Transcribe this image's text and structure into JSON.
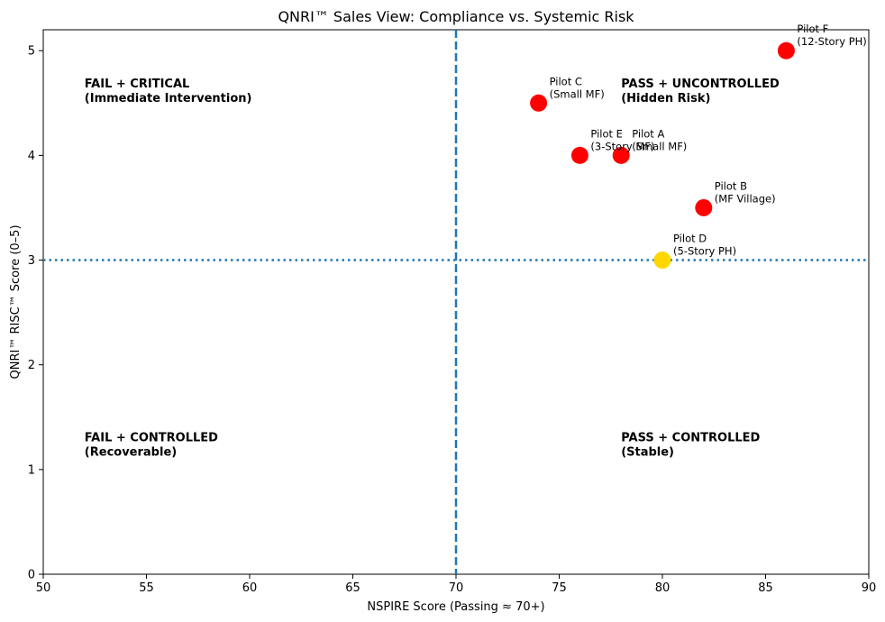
{
  "chart_data": {
    "type": "scatter",
    "title": "QNRI™ Sales View: Compliance vs. Systemic Risk",
    "xlabel": "NSPIRE Score (Passing ≈ 70+)",
    "ylabel": "QNRI™ RISC™ Score (0–5)",
    "xlim": [
      50,
      90
    ],
    "ylim": [
      0,
      5.2
    ],
    "xticks": [
      50,
      55,
      60,
      65,
      70,
      75,
      80,
      85,
      90
    ],
    "yticks": [
      0,
      1,
      2,
      3,
      4,
      5
    ],
    "grid": false,
    "reference_lines": [
      {
        "axis": "x",
        "value": 70,
        "style": "dashed",
        "color": "#1f77b4"
      },
      {
        "axis": "y",
        "value": 3,
        "style": "dotted",
        "color": "#1f77b4"
      }
    ],
    "quadrant_labels": [
      {
        "line1": "FAIL + CRITICAL",
        "line2": "(Immediate Intervention)",
        "x": 52,
        "y": 4.65
      },
      {
        "line1": "PASS + UNCONTROLLED",
        "line2": "(Hidden Risk)",
        "x": 78,
        "y": 4.65
      },
      {
        "line1": "FAIL + CONTROLLED",
        "line2": "(Recoverable)",
        "x": 52,
        "y": 1.27
      },
      {
        "line1": "PASS + CONTROLLED",
        "line2": "(Stable)",
        "x": 78,
        "y": 1.27
      }
    ],
    "points": [
      {
        "name": "Pilot A",
        "detail": "(Small MF)",
        "x": 78,
        "y": 4.0,
        "color": "#ff0000"
      },
      {
        "name": "Pilot B",
        "detail": "(MF Village)",
        "x": 82,
        "y": 3.5,
        "color": "#ff0000"
      },
      {
        "name": "Pilot C",
        "detail": "(Small MF)",
        "x": 74,
        "y": 4.5,
        "color": "#ff0000"
      },
      {
        "name": "Pilot D",
        "detail": "(5-Story PH)",
        "x": 80,
        "y": 3.0,
        "color": "#ffd700"
      },
      {
        "name": "Pilot E",
        "detail": "(3-Story MF)",
        "x": 76,
        "y": 4.0,
        "color": "#ff0000"
      },
      {
        "name": "Pilot F",
        "detail": "(12-Story PH)",
        "x": 86,
        "y": 5.0,
        "color": "#ff0000"
      }
    ]
  }
}
